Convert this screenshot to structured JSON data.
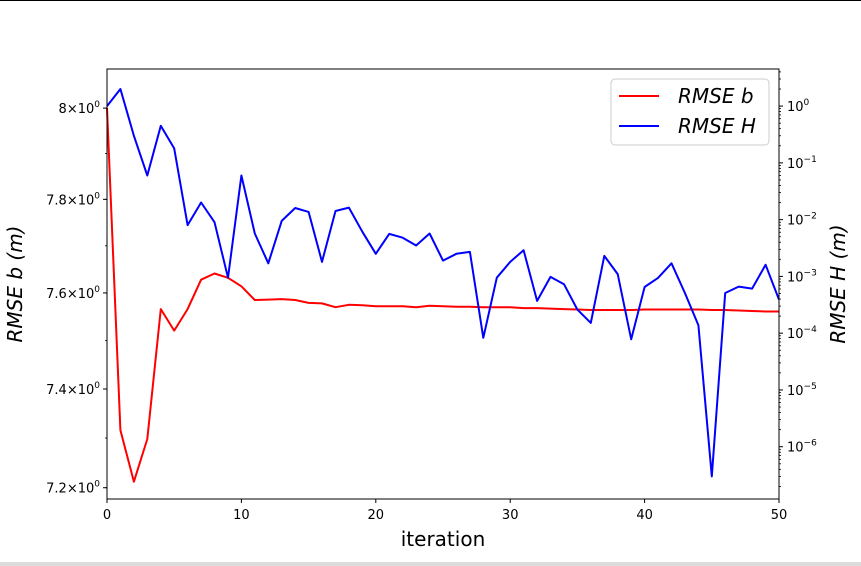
{
  "chart_data": {
    "type": "line",
    "x": [
      0,
      1,
      2,
      3,
      4,
      5,
      6,
      7,
      8,
      9,
      10,
      11,
      12,
      13,
      14,
      15,
      16,
      17,
      18,
      19,
      20,
      21,
      22,
      23,
      24,
      25,
      26,
      27,
      28,
      29,
      30,
      31,
      32,
      33,
      34,
      35,
      36,
      37,
      38,
      39,
      40,
      41,
      42,
      43,
      44,
      45,
      46,
      47,
      48,
      49,
      50
    ],
    "xlabel": "iteration",
    "xlim": [
      0,
      50
    ],
    "xticks": [
      0,
      10,
      20,
      30,
      40,
      50
    ],
    "left_axis": {
      "label": "RMSE b (m)",
      "scale": "log",
      "ylim": [
        7.1775,
        8.0873
      ],
      "ticks": [
        {
          "value": 7.2,
          "base": "7.2",
          "exp": "0",
          "label": "7.2 × 10^0"
        },
        {
          "value": 7.4,
          "base": "7.4",
          "exp": "0",
          "label": "7.4 × 10^0"
        },
        {
          "value": 7.6,
          "base": "7.6",
          "exp": "0",
          "label": "7.6 × 10^0"
        },
        {
          "value": 7.8,
          "base": "7.8",
          "exp": "0",
          "label": "7.8 × 10^0"
        },
        {
          "value": 8.0,
          "base": "8",
          "exp": "0",
          "label": "8 × 10^0"
        }
      ]
    },
    "right_axis": {
      "label": "RMSE H (m)",
      "scale": "log",
      "ylim": [
        1.2e-07,
        4.5
      ],
      "ticks": [
        {
          "value": 1.0,
          "exp": "0",
          "label": "10^0"
        },
        {
          "value": 0.1,
          "exp": "−1",
          "label": "10^−1"
        },
        {
          "value": 0.01,
          "exp": "−2",
          "label": "10^−2"
        },
        {
          "value": 0.001,
          "exp": "−3",
          "label": "10^−3"
        },
        {
          "value": 0.0001,
          "exp": "−4",
          "label": "10^−4"
        },
        {
          "value": 1e-05,
          "exp": "−5",
          "label": "10^−5"
        },
        {
          "value": 1e-06,
          "exp": "−6",
          "label": "10^−6"
        }
      ]
    },
    "series": [
      {
        "name": "RMSE b",
        "axis": "left",
        "color": "#ff0000",
        "values": [
          8.0,
          7.316,
          7.212,
          7.298,
          7.566,
          7.521,
          7.566,
          7.628,
          7.641,
          7.632,
          7.614,
          7.585,
          7.586,
          7.587,
          7.585,
          7.579,
          7.578,
          7.57,
          7.575,
          7.574,
          7.572,
          7.572,
          7.572,
          7.57,
          7.573,
          7.572,
          7.571,
          7.571,
          7.57,
          7.57,
          7.57,
          7.568,
          7.568,
          7.567,
          7.566,
          7.565,
          7.564,
          7.564,
          7.564,
          7.564,
          7.565,
          7.565,
          7.565,
          7.565,
          7.565,
          7.564,
          7.564,
          7.563,
          7.562,
          7.561,
          7.561
        ]
      },
      {
        "name": "RMSE H",
        "axis": "right",
        "color": "#0000ff",
        "values": [
          1.0,
          2.0,
          0.3,
          0.06,
          0.45,
          0.18,
          0.008,
          0.02,
          0.009,
          0.00095,
          0.06,
          0.0057,
          0.0017,
          0.0095,
          0.016,
          0.0137,
          0.0018,
          0.0142,
          0.0163,
          0.0061,
          0.0025,
          0.0056,
          0.0048,
          0.0035,
          0.0057,
          0.0019,
          0.0025,
          0.0027,
          8.3e-05,
          0.00095,
          0.0018,
          0.0029,
          0.00037,
          0.00098,
          0.00073,
          0.00026,
          0.000152,
          0.0023,
          0.0011,
          7.8e-05,
          0.00065,
          0.00094,
          0.0017,
          0.00051,
          0.000138,
          3e-07,
          0.00051,
          0.00066,
          0.00061,
          0.0016,
          0.00039
        ]
      }
    ],
    "legend": {
      "position": "upper right",
      "entries": [
        {
          "label": "RMSE b",
          "color": "#ff0000"
        },
        {
          "label": "RMSE H",
          "color": "#0000ff"
        }
      ]
    },
    "grid": false
  }
}
